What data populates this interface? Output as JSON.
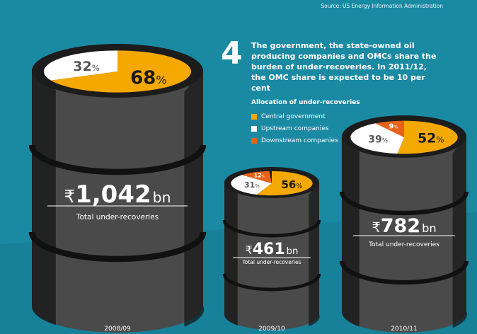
{
  "source": "Source: US Energy Information Administration",
  "note": {
    "number": "4",
    "text": "The government, the state-owned oil producing companies and OMCs share the burden of under-recoveries. In 2011/12, the OMC share is expected to be 10 per cent"
  },
  "legend": {
    "title": "Allocation of under-recoveries",
    "items": [
      {
        "label": "Central government",
        "color": "#f5a800"
      },
      {
        "label": "Upstream companies",
        "color": "#ffffff"
      },
      {
        "label": "Downstream companies",
        "color": "#e8621a"
      }
    ]
  },
  "chart_data": {
    "type": "pie",
    "series_names": [
      "Central government",
      "Upstream companies",
      "Downstream companies"
    ],
    "colors": [
      "#f5a800",
      "#ffffff",
      "#e8621a"
    ],
    "barrels": [
      {
        "year": "2008/09",
        "total_symbol": "₹",
        "total_value": "1,042",
        "total_unit": "bn",
        "total_label": "Total under-recoveries",
        "total_numeric": 1042,
        "shares": [
          68,
          32,
          0
        ],
        "share_labels": [
          "68",
          "32",
          ""
        ]
      },
      {
        "year": "2009/10",
        "total_symbol": "₹",
        "total_value": "461",
        "total_unit": "bn",
        "total_label": "Total under-recoveries",
        "total_numeric": 461,
        "shares": [
          56,
          31,
          12
        ],
        "share_labels": [
          "56",
          "31",
          "12"
        ]
      },
      {
        "year": "2010/11",
        "total_symbol": "₹",
        "total_value": "782",
        "total_unit": "bn",
        "total_label": "Total under-recoveries",
        "total_numeric": 782,
        "shares": [
          52,
          39,
          9
        ],
        "share_labels": [
          "52",
          "39",
          "9"
        ]
      }
    ],
    "percent_sign": "%"
  }
}
